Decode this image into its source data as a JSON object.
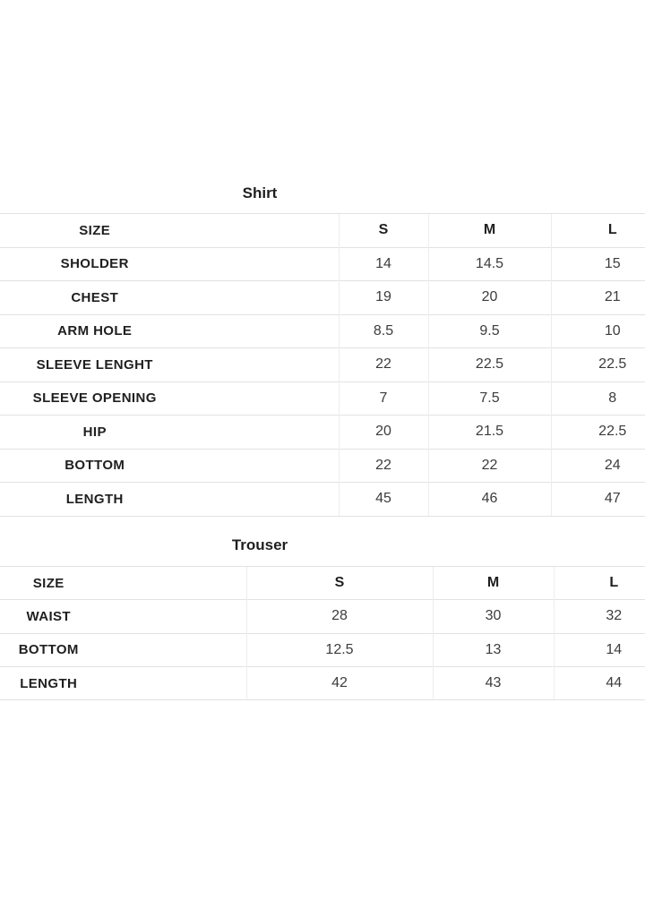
{
  "theme": {
    "background_color": "#ffffff",
    "border_color_horizontal": "#e2e2e2",
    "border_color_vertical": "#ededed",
    "label_text_color": "#1f1f1f",
    "value_text_color": "#3c3c3c"
  },
  "shirt_table": {
    "title": "Shirt",
    "columns": [
      "SIZE",
      "S",
      "M",
      "L"
    ],
    "rows": [
      {
        "label": "SHOLDER",
        "values": [
          "14",
          "14.5",
          "15"
        ]
      },
      {
        "label": "CHEST",
        "values": [
          "19",
          "20",
          "21"
        ]
      },
      {
        "label": "ARM HOLE",
        "values": [
          "8.5",
          "9.5",
          "10"
        ]
      },
      {
        "label": "SLEEVE LENGHT",
        "values": [
          "22",
          "22.5",
          "22.5"
        ]
      },
      {
        "label": "SLEEVE OPENING",
        "values": [
          "7",
          "7.5",
          "8"
        ]
      },
      {
        "label": "HIP",
        "values": [
          "20",
          "21.5",
          "22.5"
        ]
      },
      {
        "label": "BOTTOM",
        "values": [
          "22",
          "22",
          "24"
        ]
      },
      {
        "label": "LENGTH",
        "values": [
          "45",
          "46",
          "47"
        ]
      }
    ]
  },
  "trouser_table": {
    "title": "Trouser",
    "columns": [
      "SIZE",
      "S",
      "M",
      "L"
    ],
    "rows": [
      {
        "label": "WAIST",
        "values": [
          "28",
          "30",
          "32"
        ]
      },
      {
        "label": "BOTTOM",
        "values": [
          "12.5",
          "13",
          "14"
        ]
      },
      {
        "label": "LENGTH",
        "values": [
          "42",
          "43",
          "44"
        ]
      }
    ]
  }
}
